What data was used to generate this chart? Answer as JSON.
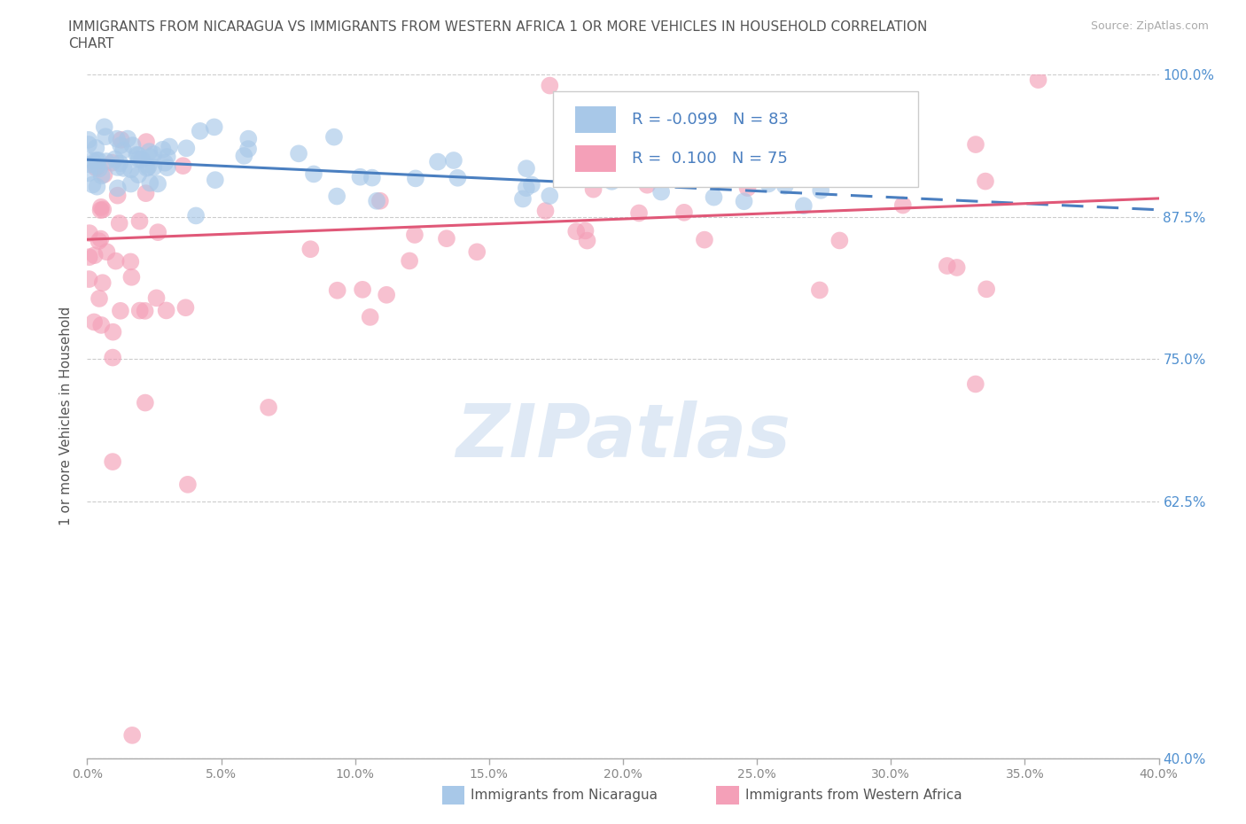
{
  "title_line1": "IMMIGRANTS FROM NICARAGUA VS IMMIGRANTS FROM WESTERN AFRICA 1 OR MORE VEHICLES IN HOUSEHOLD CORRELATION",
  "title_line2": "CHART",
  "source_text": "Source: ZipAtlas.com",
  "xlabel_nicaragua": "Immigrants from Nicaragua",
  "xlabel_western_africa": "Immigrants from Western Africa",
  "ylabel": "1 or more Vehicles in Household",
  "xlim": [
    0.0,
    40.0
  ],
  "ylim": [
    40.0,
    100.0
  ],
  "xticks": [
    0.0,
    5.0,
    10.0,
    15.0,
    20.0,
    25.0,
    30.0,
    35.0,
    40.0
  ],
  "yticks": [
    40.0,
    62.5,
    75.0,
    87.5,
    100.0
  ],
  "xtick_labels": [
    "0.0%",
    "5.0%",
    "10.0%",
    "15.0%",
    "20.0%",
    "25.0%",
    "30.0%",
    "35.0%",
    "40.0%"
  ],
  "ytick_labels": [
    "40.0%",
    "62.5%",
    "75.0%",
    "87.5%",
    "100.0%"
  ],
  "R_nicaragua": -0.099,
  "N_nicaragua": 83,
  "R_western_africa": 0.1,
  "N_western_africa": 75,
  "color_nicaragua": "#a8c8e8",
  "color_western_africa": "#f4a0b8",
  "trendline_nicaragua": "#4a7fc0",
  "trendline_western_africa": "#e05878",
  "watermark": "ZIPatlas",
  "trendline_nic_intercept": 92.5,
  "trendline_nic_slope": -0.11,
  "trendline_wa_intercept": 85.5,
  "trendline_wa_slope": 0.09,
  "trendline_solid_end_nic": 18.0,
  "trendline_solid_end_wa": 40.0
}
